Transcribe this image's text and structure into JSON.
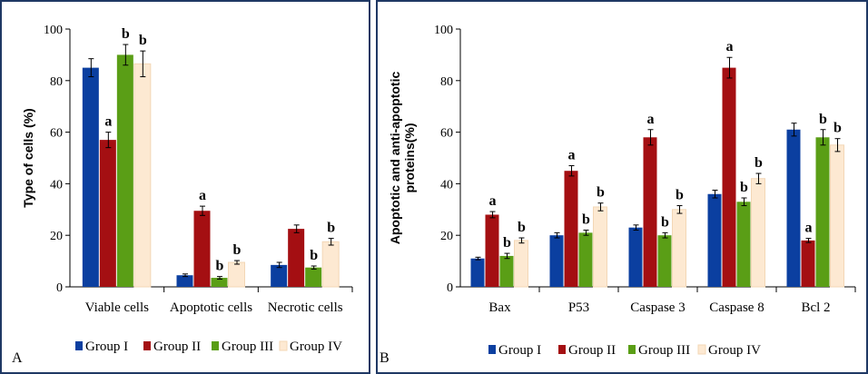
{
  "colors": {
    "Group I": "#0b3fa0",
    "Group II": "#a40f12",
    "Group III": "#5a9e16",
    "Group IV": "#fde9d2",
    "frame": "#1f3864"
  },
  "chart_data": [
    {
      "panel_label": "A",
      "type": "bar",
      "ylabel": "Type of cells (%)",
      "ylim": [
        0,
        100
      ],
      "yticks": [
        0,
        20,
        40,
        60,
        80,
        100
      ],
      "categories": [
        "Viable cells",
        "Apoptotic cells",
        "Necrotic cells"
      ],
      "series": [
        {
          "name": "Group I",
          "values": [
            85,
            4.5,
            8.5
          ],
          "errors": [
            3.5,
            0.5,
            1
          ],
          "letters": [
            "",
            "",
            ""
          ]
        },
        {
          "name": "Group II",
          "values": [
            57,
            29.5,
            22.5
          ],
          "errors": [
            3,
            1.8,
            1.5
          ],
          "letters": [
            "a",
            "a",
            ""
          ]
        },
        {
          "name": "Group III",
          "values": [
            90,
            3.5,
            7.5
          ],
          "errors": [
            4,
            0.5,
            0.6
          ],
          "letters": [
            "b",
            "b",
            "b"
          ]
        },
        {
          "name": "Group IV",
          "values": [
            86.5,
            9.5,
            17.5
          ],
          "errors": [
            5,
            0.7,
            1.3
          ],
          "letters": [
            "b",
            "b",
            "b"
          ]
        }
      ],
      "legend": [
        "Group I",
        "Group II",
        "Group III",
        "Group IV"
      ]
    },
    {
      "panel_label": "B",
      "type": "bar",
      "ylabel_lines": [
        "Apoptotic and anti-apoptotic",
        "proteins(%)"
      ],
      "ylim": [
        0,
        100
      ],
      "yticks": [
        0,
        20,
        40,
        60,
        80,
        100
      ],
      "categories": [
        "Bax",
        "P53",
        "Caspase 3",
        "Caspase 8",
        "Bcl 2"
      ],
      "series": [
        {
          "name": "Group I",
          "values": [
            11,
            20,
            23,
            36,
            61
          ],
          "errors": [
            0.5,
            1,
            1,
            1.5,
            2.5
          ],
          "letters": [
            "",
            "",
            "",
            "",
            ""
          ]
        },
        {
          "name": "Group II",
          "values": [
            28,
            45,
            58,
            85,
            18
          ],
          "errors": [
            1.2,
            2,
            3,
            4,
            0.8
          ],
          "letters": [
            "a",
            "a",
            "a",
            "a",
            "a"
          ]
        },
        {
          "name": "Group III",
          "values": [
            12,
            21,
            20,
            33,
            58
          ],
          "errors": [
            1,
            1,
            1,
            1.5,
            3
          ],
          "letters": [
            "b",
            "b",
            "b",
            "b",
            "b"
          ]
        },
        {
          "name": "Group IV",
          "values": [
            18,
            31,
            30,
            42,
            55
          ],
          "errors": [
            1,
            1.5,
            1.5,
            2,
            2.5
          ],
          "letters": [
            "b",
            "b",
            "b",
            "b",
            "b"
          ]
        }
      ],
      "legend": [
        "Group I",
        "Group II",
        "Group III",
        "Group IV"
      ]
    }
  ]
}
